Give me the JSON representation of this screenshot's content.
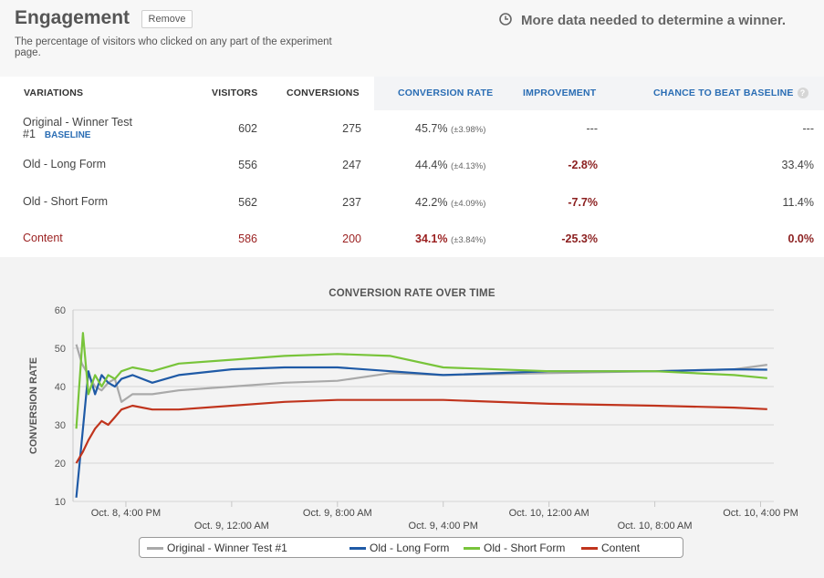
{
  "header": {
    "title": "Engagement",
    "remove_label": "Remove",
    "description": "The percentage of visitors who clicked on any part of the experiment page.",
    "notice": "More data needed to determine a winner."
  },
  "table": {
    "columns": {
      "variations": "VARIATIONS",
      "visitors": "VISITORS",
      "conversions": "CONVERSIONS",
      "conversion_rate": "CONVERSION RATE",
      "improvement": "IMPROVEMENT",
      "chance": "CHANCE TO BEAT BASELINE"
    },
    "help_glyph": "?",
    "rows": [
      {
        "name": "Original - Winner Test #1",
        "badge": "BASELINE",
        "visitors": "602",
        "conversions": "275",
        "rate": "45.7%",
        "margin": "(±3.98%)",
        "improvement": "---",
        "chance": "---"
      },
      {
        "name": "Old - Long Form",
        "badge": "",
        "visitors": "556",
        "conversions": "247",
        "rate": "44.4%",
        "margin": "(±4.13%)",
        "improvement": "-2.8%",
        "chance": "33.4%"
      },
      {
        "name": "Old - Short Form",
        "badge": "",
        "visitors": "562",
        "conversions": "237",
        "rate": "42.2%",
        "margin": "(±4.09%)",
        "improvement": "-7.7%",
        "chance": "11.4%"
      },
      {
        "name": "Content",
        "badge": "",
        "visitors": "586",
        "conversions": "200",
        "rate": "34.1%",
        "margin": "(±3.84%)",
        "improvement": "-25.3%",
        "chance": "0.0%"
      }
    ]
  },
  "colors": {
    "accent_blue": "#2a6db4",
    "negative_red": "#8b1f1f",
    "series_original": "#a9a9a9",
    "series_long": "#1f5aa6",
    "series_short": "#78c43a",
    "series_content": "#c0341d"
  },
  "icons": {
    "notice": "clock-icon",
    "help": "help-circle-icon"
  },
  "chart_data": {
    "type": "line",
    "title": "CONVERSION RATE OVER TIME",
    "ylabel": "CONVERSION RATE",
    "xlabel": "",
    "ylim": [
      10,
      60
    ],
    "yticks": [
      10,
      20,
      30,
      40,
      50,
      60
    ],
    "xlim": [
      "Oct. 8, 12:00 PM",
      "Oct. 10, 5:00 PM"
    ],
    "grid": true,
    "legend_position": "bottom",
    "xticks": [
      {
        "label": "Oct. 8, 4:00 PM",
        "x": "Oct. 8, 4:00 PM",
        "row": 1
      },
      {
        "label": "Oct. 9, 12:00 AM",
        "x": "Oct. 9, 12:00 AM",
        "row": 2
      },
      {
        "label": "Oct. 9, 8:00 AM",
        "x": "Oct. 9, 8:00 AM",
        "row": 1
      },
      {
        "label": "Oct. 9, 4:00 PM",
        "x": "Oct. 9, 4:00 PM",
        "row": 2
      },
      {
        "label": "Oct. 10, 12:00 AM",
        "x": "Oct. 10, 12:00 AM",
        "row": 1
      },
      {
        "label": "Oct. 10, 8:00 AM",
        "x": "Oct. 10, 8:00 AM",
        "row": 2
      },
      {
        "label": "Oct. 10, 4:00 PM",
        "x": "Oct. 10, 4:00 PM",
        "row": 1
      }
    ],
    "series": [
      {
        "name": "Original - Winner Test #1",
        "color": "#a9a9a9",
        "points": [
          [
            "Oct. 8, 12:15 PM",
            51
          ],
          [
            "Oct. 8, 12:40 PM",
            46
          ],
          [
            "Oct. 8, 1:10 PM",
            43
          ],
          [
            "Oct. 8, 1:40 PM",
            40
          ],
          [
            "Oct. 8, 2:10 PM",
            39
          ],
          [
            "Oct. 8, 2:40 PM",
            41
          ],
          [
            "Oct. 8, 3:10 PM",
            42
          ],
          [
            "Oct. 8, 3:40 PM",
            36
          ],
          [
            "Oct. 8, 4:30 PM",
            38
          ],
          [
            "Oct. 8, 6:00 PM",
            38
          ],
          [
            "Oct. 8, 8:00 PM",
            39
          ],
          [
            "Oct. 9, 12:00 AM",
            40
          ],
          [
            "Oct. 9, 4:00 AM",
            41
          ],
          [
            "Oct. 9, 8:00 AM",
            41.5
          ],
          [
            "Oct. 9, 12:00 PM",
            43.5
          ],
          [
            "Oct. 9, 4:00 PM",
            43
          ],
          [
            "Oct. 10, 12:00 AM",
            43.5
          ],
          [
            "Oct. 10, 8:00 AM",
            44
          ],
          [
            "Oct. 10, 2:00 PM",
            44.5
          ],
          [
            "Oct. 10, 4:30 PM",
            45.7
          ]
        ]
      },
      {
        "name": "Old - Long Form",
        "color": "#1f5aa6",
        "points": [
          [
            "Oct. 8, 12:15 PM",
            11
          ],
          [
            "Oct. 8, 12:45 PM",
            29
          ],
          [
            "Oct. 8, 1:10 PM",
            44
          ],
          [
            "Oct. 8, 1:40 PM",
            38
          ],
          [
            "Oct. 8, 2:10 PM",
            43
          ],
          [
            "Oct. 8, 2:40 PM",
            41
          ],
          [
            "Oct. 8, 3:10 PM",
            40
          ],
          [
            "Oct. 8, 3:40 PM",
            42
          ],
          [
            "Oct. 8, 4:30 PM",
            43
          ],
          [
            "Oct. 8, 6:00 PM",
            41
          ],
          [
            "Oct. 8, 8:00 PM",
            43
          ],
          [
            "Oct. 9, 12:00 AM",
            44.5
          ],
          [
            "Oct. 9, 4:00 AM",
            45
          ],
          [
            "Oct. 9, 8:00 AM",
            45
          ],
          [
            "Oct. 9, 12:00 PM",
            44
          ],
          [
            "Oct. 9, 4:00 PM",
            43
          ],
          [
            "Oct. 10, 12:00 AM",
            44
          ],
          [
            "Oct. 10, 8:00 AM",
            44
          ],
          [
            "Oct. 10, 2:00 PM",
            44.5
          ],
          [
            "Oct. 10, 4:30 PM",
            44.4
          ]
        ]
      },
      {
        "name": "Old - Short Form",
        "color": "#78c43a",
        "points": [
          [
            "Oct. 8, 12:15 PM",
            29
          ],
          [
            "Oct. 8, 12:45 PM",
            54
          ],
          [
            "Oct. 8, 1:10 PM",
            38
          ],
          [
            "Oct. 8, 1:40 PM",
            43
          ],
          [
            "Oct. 8, 2:10 PM",
            40
          ],
          [
            "Oct. 8, 2:40 PM",
            43
          ],
          [
            "Oct. 8, 3:10 PM",
            42
          ],
          [
            "Oct. 8, 3:40 PM",
            44
          ],
          [
            "Oct. 8, 4:30 PM",
            45
          ],
          [
            "Oct. 8, 6:00 PM",
            44
          ],
          [
            "Oct. 8, 8:00 PM",
            46
          ],
          [
            "Oct. 9, 12:00 AM",
            47
          ],
          [
            "Oct. 9, 4:00 AM",
            48
          ],
          [
            "Oct. 9, 8:00 AM",
            48.5
          ],
          [
            "Oct. 9, 12:00 PM",
            48
          ],
          [
            "Oct. 9, 4:00 PM",
            45
          ],
          [
            "Oct. 10, 12:00 AM",
            44
          ],
          [
            "Oct. 10, 8:00 AM",
            44
          ],
          [
            "Oct. 10, 2:00 PM",
            43
          ],
          [
            "Oct. 10, 4:30 PM",
            42.2
          ]
        ]
      },
      {
        "name": "Content",
        "color": "#c0341d",
        "points": [
          [
            "Oct. 8, 12:15 PM",
            20
          ],
          [
            "Oct. 8, 12:45 PM",
            23
          ],
          [
            "Oct. 8, 1:10 PM",
            26
          ],
          [
            "Oct. 8, 1:40 PM",
            29
          ],
          [
            "Oct. 8, 2:10 PM",
            31
          ],
          [
            "Oct. 8, 2:40 PM",
            30
          ],
          [
            "Oct. 8, 3:10 PM",
            32
          ],
          [
            "Oct. 8, 3:40 PM",
            34
          ],
          [
            "Oct. 8, 4:30 PM",
            35
          ],
          [
            "Oct. 8, 6:00 PM",
            34
          ],
          [
            "Oct. 8, 8:00 PM",
            34
          ],
          [
            "Oct. 9, 12:00 AM",
            35
          ],
          [
            "Oct. 9, 4:00 AM",
            36
          ],
          [
            "Oct. 9, 8:00 AM",
            36.5
          ],
          [
            "Oct. 9, 12:00 PM",
            36.5
          ],
          [
            "Oct. 9, 4:00 PM",
            36.5
          ],
          [
            "Oct. 10, 12:00 AM",
            35.5
          ],
          [
            "Oct. 10, 8:00 AM",
            35
          ],
          [
            "Oct. 10, 2:00 PM",
            34.5
          ],
          [
            "Oct. 10, 4:30 PM",
            34.1
          ]
        ]
      }
    ]
  }
}
